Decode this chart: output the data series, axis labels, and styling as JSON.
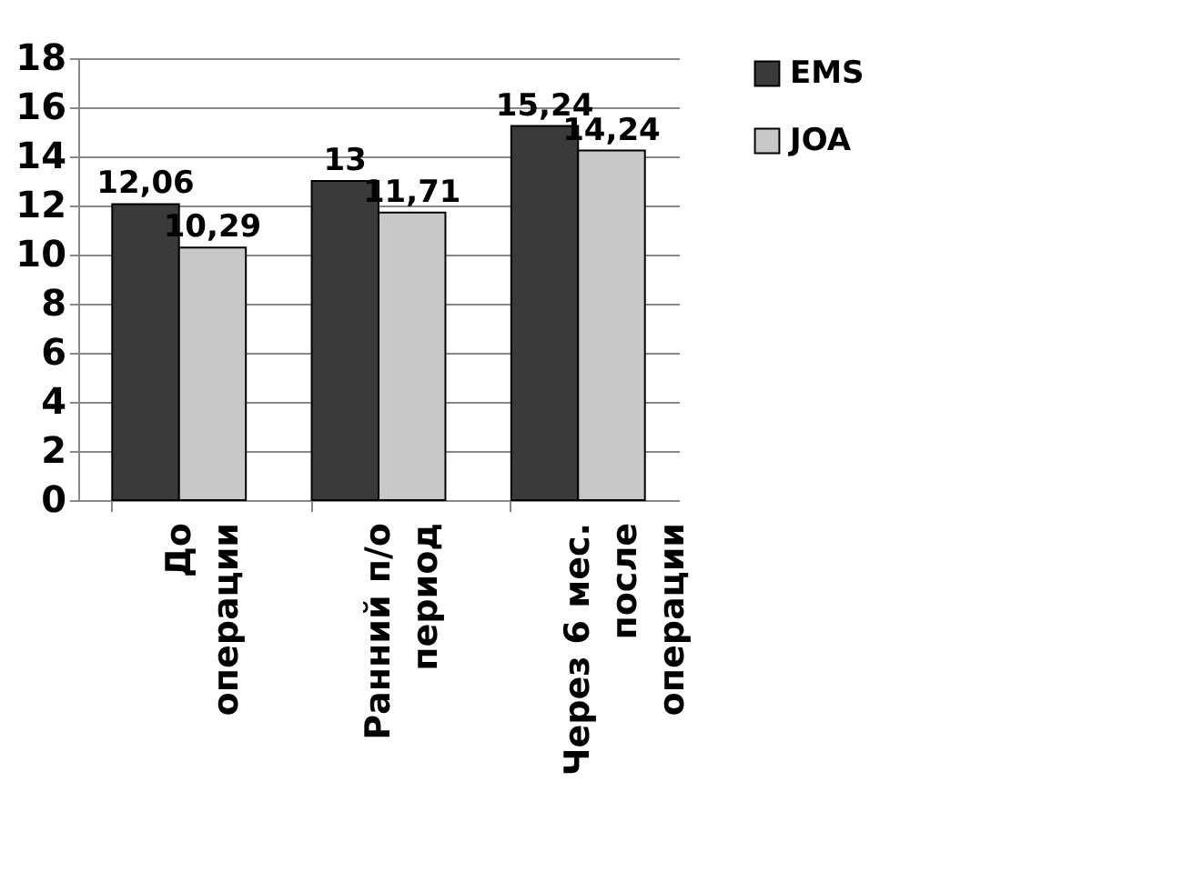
{
  "chart_data": {
    "type": "bar",
    "categories": [
      "До\nоперации",
      "Ранний п/о\nпериод",
      "Через 6 мес.\nпосле\nоперации"
    ],
    "series": [
      {
        "name": "EMS",
        "color": "#3a3a3a",
        "values": [
          12.06,
          13,
          15.24
        ],
        "value_labels": [
          "12,06",
          "13",
          "15,24"
        ]
      },
      {
        "name": "JOA",
        "color": "#c8c8c8",
        "values": [
          10.29,
          11.71,
          14.24
        ],
        "value_labels": [
          "10,29",
          "11,71",
          "14,24"
        ]
      }
    ],
    "ylim": [
      0,
      18
    ],
    "yticks": [
      0,
      2,
      4,
      6,
      8,
      10,
      12,
      14,
      16,
      18
    ],
    "grid": "y",
    "legend": "right"
  }
}
